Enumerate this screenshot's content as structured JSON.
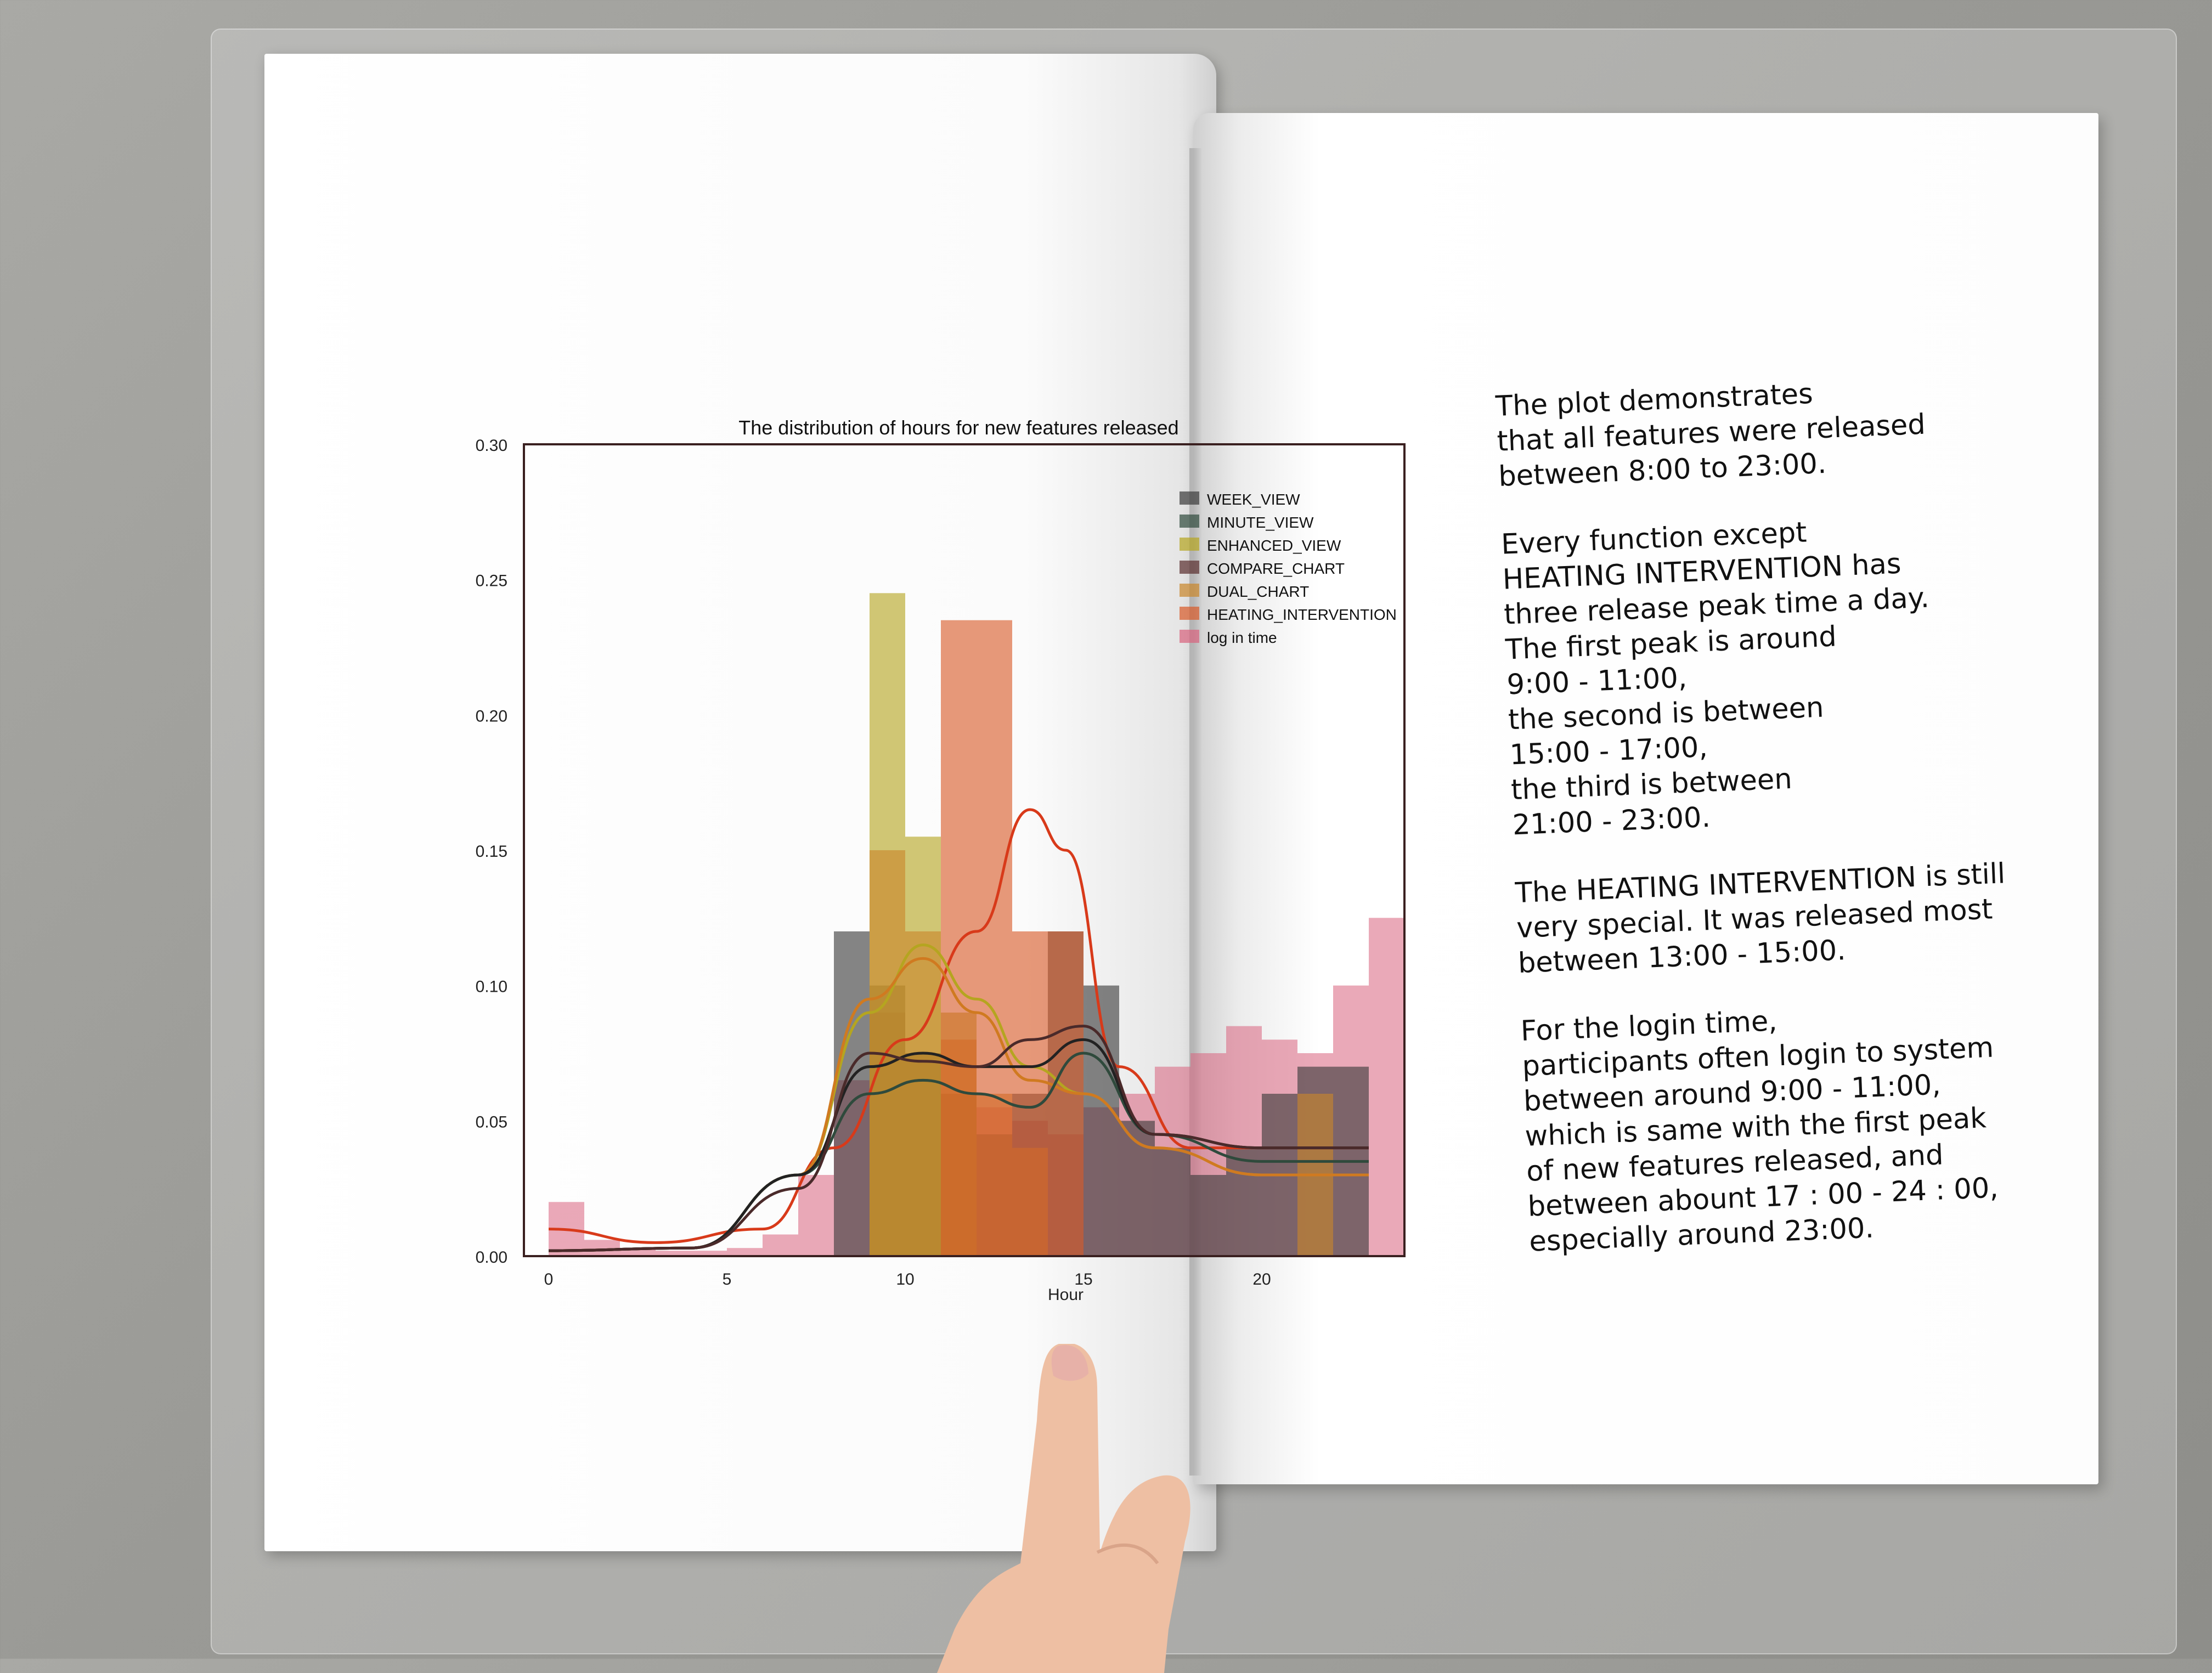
{
  "chart_data": {
    "type": "bar",
    "title": "The distribution of hours for new features released",
    "xlabel": "Hour",
    "ylabel": "",
    "xlim": [
      0,
      24
    ],
    "ylim": [
      0,
      0.3
    ],
    "xticks": [
      0,
      5,
      10,
      15,
      20
    ],
    "yticks": [
      "0.00",
      "0.05",
      "0.10",
      "0.15",
      "0.20",
      "0.25",
      "0.30"
    ],
    "legend_position": "top-right",
    "legend": [
      "WEEK_VIEW",
      "MINUTE_VIEW",
      "ENHANCED_VIEW",
      "COMPARE_CHART",
      "DUAL_CHART",
      "HEATING_INTERVENTION",
      "log in time"
    ],
    "colors": {
      "WEEK_VIEW": "#3a3a3a",
      "MINUTE_VIEW": "#2f4a3c",
      "ENHANCED_VIEW": "#b5a520",
      "COMPARE_CHART": "#5a2e2e",
      "DUAL_CHART": "#c9862a",
      "HEATING_INTERVENTION": "#d85a28",
      "log in time": "#d8637e"
    },
    "series": [
      {
        "name": "log in time",
        "bins": [
          [
            0,
            1,
            0.02
          ],
          [
            1,
            2,
            0.006
          ],
          [
            2,
            3,
            0.003
          ],
          [
            3,
            4,
            0.002
          ],
          [
            4,
            5,
            0.002
          ],
          [
            5,
            6,
            0.003
          ],
          [
            6,
            7,
            0.008
          ],
          [
            7,
            8,
            0.03
          ],
          [
            8,
            9,
            0.065
          ],
          [
            9,
            10,
            0.09
          ],
          [
            10,
            11,
            0.075
          ],
          [
            11,
            12,
            0.06
          ],
          [
            12,
            13,
            0.055
          ],
          [
            13,
            14,
            0.05
          ],
          [
            14,
            15,
            0.045
          ],
          [
            15,
            16,
            0.055
          ],
          [
            16,
            17,
            0.06
          ],
          [
            17,
            18,
            0.07
          ],
          [
            18,
            19,
            0.075
          ],
          [
            19,
            20,
            0.085
          ],
          [
            20,
            21,
            0.08
          ],
          [
            21,
            22,
            0.075
          ],
          [
            22,
            23,
            0.1
          ],
          [
            23,
            24,
            0.125
          ]
        ]
      },
      {
        "name": "WEEK_VIEW",
        "bins": [
          [
            8,
            9,
            0.12
          ],
          [
            9,
            10,
            0.1
          ],
          [
            10,
            11,
            0.075
          ],
          [
            11,
            12,
            0.06
          ],
          [
            12,
            13,
            0.045
          ],
          [
            13,
            14,
            0.06
          ],
          [
            14,
            15,
            0.12
          ],
          [
            15,
            16,
            0.1
          ],
          [
            16,
            17,
            0.05
          ],
          [
            17,
            18,
            0.04
          ],
          [
            18,
            19,
            0.03
          ],
          [
            19,
            20,
            0.04
          ],
          [
            20,
            21,
            0.06
          ],
          [
            21,
            22,
            0.07
          ],
          [
            22,
            23,
            0.07
          ]
        ]
      },
      {
        "name": "ENHANCED_VIEW",
        "bins": [
          [
            9,
            10,
            0.245
          ],
          [
            10,
            11,
            0.155
          ],
          [
            11,
            12,
            0.09
          ]
        ]
      },
      {
        "name": "DUAL_CHART",
        "bins": [
          [
            9,
            10,
            0.15
          ],
          [
            10,
            11,
            0.12
          ],
          [
            11,
            12,
            0.08
          ],
          [
            12,
            13,
            0.06
          ],
          [
            13,
            14,
            0.04
          ],
          [
            21,
            22,
            0.06
          ]
        ]
      },
      {
        "name": "HEATING_INTERVENTION",
        "bins": [
          [
            11,
            12,
            0.235
          ],
          [
            12,
            13,
            0.235
          ],
          [
            13,
            14,
            0.12
          ],
          [
            14,
            15,
            0.12
          ]
        ]
      }
    ],
    "curves": [
      {
        "name": "HEATING_INTERVENTION",
        "color": "#d83a1a",
        "points": [
          [
            0,
            0.01
          ],
          [
            3,
            0.005
          ],
          [
            6,
            0.01
          ],
          [
            8,
            0.04
          ],
          [
            10,
            0.08
          ],
          [
            12,
            0.12
          ],
          [
            13.5,
            0.165
          ],
          [
            14.5,
            0.15
          ],
          [
            16,
            0.07
          ],
          [
            18,
            0.04
          ],
          [
            20,
            0.04
          ],
          [
            23,
            0.04
          ]
        ]
      },
      {
        "name": "ENHANCED_VIEW",
        "color": "#b5a520",
        "points": [
          [
            0,
            0.002
          ],
          [
            4,
            0.003
          ],
          [
            7,
            0.03
          ],
          [
            9,
            0.09
          ],
          [
            10.5,
            0.115
          ],
          [
            12,
            0.095
          ],
          [
            13.5,
            0.07
          ],
          [
            15,
            0.06
          ],
          [
            17,
            0.04
          ],
          [
            20,
            0.03
          ],
          [
            23,
            0.03
          ]
        ]
      },
      {
        "name": "DUAL_CHART",
        "color": "#d07a20",
        "points": [
          [
            0,
            0.002
          ],
          [
            4,
            0.003
          ],
          [
            7,
            0.03
          ],
          [
            9,
            0.095
          ],
          [
            10.5,
            0.11
          ],
          [
            12,
            0.09
          ],
          [
            13.5,
            0.065
          ],
          [
            15,
            0.06
          ],
          [
            17,
            0.04
          ],
          [
            20,
            0.03
          ],
          [
            23,
            0.03
          ]
        ]
      },
      {
        "name": "MINUTE_VIEW",
        "color": "#2f4a3c",
        "points": [
          [
            0,
            0.002
          ],
          [
            4,
            0.003
          ],
          [
            7,
            0.03
          ],
          [
            9,
            0.06
          ],
          [
            10.5,
            0.065
          ],
          [
            12,
            0.06
          ],
          [
            13.5,
            0.055
          ],
          [
            15,
            0.075
          ],
          [
            17,
            0.045
          ],
          [
            20,
            0.035
          ],
          [
            23,
            0.035
          ]
        ]
      },
      {
        "name": "WEEK_VIEW",
        "color": "#222222",
        "points": [
          [
            0,
            0.002
          ],
          [
            4,
            0.003
          ],
          [
            7,
            0.03
          ],
          [
            9,
            0.07
          ],
          [
            10.5,
            0.075
          ],
          [
            12,
            0.07
          ],
          [
            13.5,
            0.07
          ],
          [
            15,
            0.08
          ],
          [
            17,
            0.045
          ],
          [
            20,
            0.04
          ],
          [
            23,
            0.04
          ]
        ]
      },
      {
        "name": "COMPARE_CHART",
        "color": "#4a2a2a",
        "points": [
          [
            0,
            0.002
          ],
          [
            4,
            0.003
          ],
          [
            7,
            0.025
          ],
          [
            9,
            0.075
          ],
          [
            10.5,
            0.072
          ],
          [
            12,
            0.07
          ],
          [
            13.5,
            0.08
          ],
          [
            15,
            0.085
          ],
          [
            17,
            0.045
          ],
          [
            20,
            0.04
          ],
          [
            23,
            0.04
          ]
        ]
      }
    ]
  },
  "notes": [
    "The plot demonstrates\nthat all features were released\nbetween 8:00 to 23:00.",
    "Every function except\nHEATING INTERVENTION has\nthree release peak time a day.\nThe first peak is around\n9:00 - 11:00,\nthe second is between\n15:00 - 17:00,\nthe third is between\n21:00 - 23:00.",
    "The HEATING INTERVENTION is still\nvery special. It was released most\nbetween 13:00 - 15:00.",
    "For the login time,\nparticipants often login to system\nbetween around 9:00 - 11:00,\nwhich is same with the first peak\nof new features released, and\nbetween abount 17 : 00 - 24 : 00,\nespecially around 23:00."
  ],
  "colors": {
    "skin": "#f0c4a8",
    "nail": "#e8b8b0"
  }
}
